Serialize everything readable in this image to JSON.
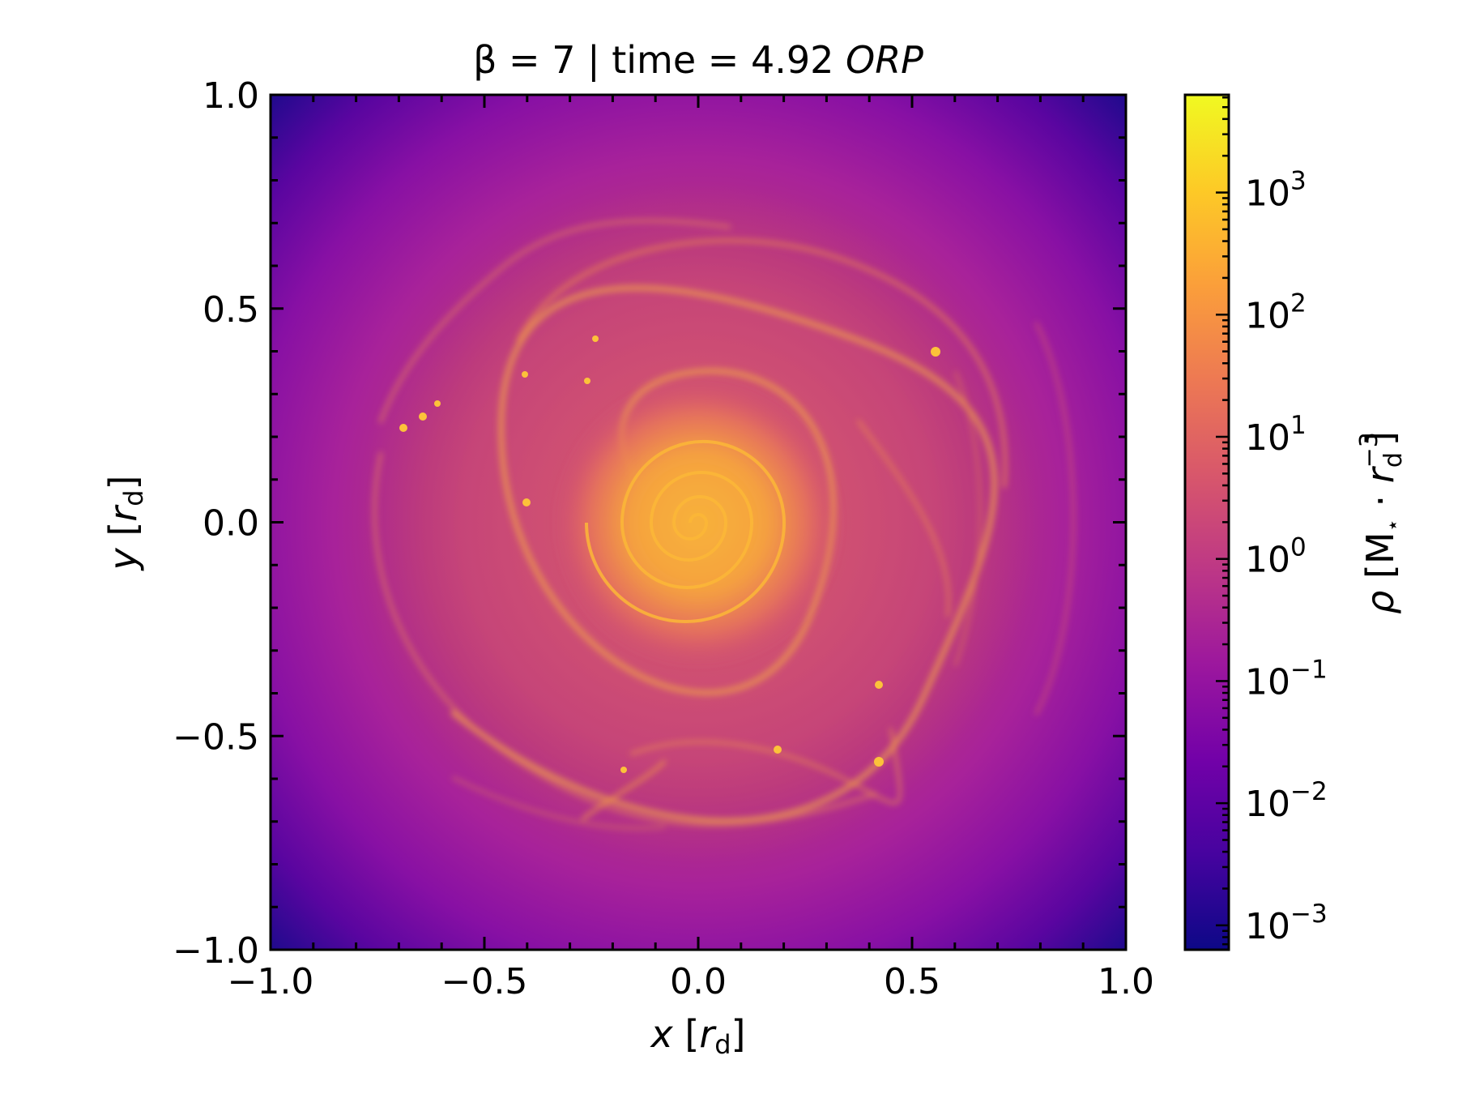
{
  "chart_data": {
    "type": "heatmap",
    "title_parts": {
      "beta": "β = 7",
      "sep": " | time = 4.92 ",
      "unit": "ORP"
    },
    "xlabel": {
      "var": "x",
      "open": " [",
      "sym": "r",
      "sub": "d",
      "close": "]"
    },
    "ylabel": {
      "var": "y",
      "open": " [",
      "sym": "r",
      "sub": "d",
      "close": "]"
    },
    "xlim": [
      -1.0,
      1.0
    ],
    "ylim": [
      -1.0,
      1.0
    ],
    "xticks": [
      -1.0,
      -0.5,
      0.0,
      0.5,
      1.0
    ],
    "yticks": [
      -1.0,
      -0.5,
      0.0,
      0.5,
      1.0
    ],
    "xtick_labels": [
      "−1.0",
      "−0.5",
      "0.0",
      "0.5",
      "1.0"
    ],
    "ytick_labels": [
      "−1.0",
      "−0.5",
      "0.0",
      "0.5",
      "1.0"
    ],
    "colorbar": {
      "label": {
        "rho": "ρ",
        "open": " [M",
        "star": "⋆",
        "dot": " · ",
        "sym": "r",
        "sub": "d",
        "sup": "−3",
        "close": "]"
      },
      "scale": "log",
      "range_exp": [
        -3.2,
        3.8
      ],
      "tick_exponents": [
        -3,
        -2,
        -1,
        0,
        1,
        2,
        3
      ],
      "tick_labels": [
        {
          "base": "10",
          "exp": "−3"
        },
        {
          "base": "10",
          "exp": "−2"
        },
        {
          "base": "10",
          "exp": "−1"
        },
        {
          "base": "10",
          "exp": "0"
        },
        {
          "base": "10",
          "exp": "1"
        },
        {
          "base": "10",
          "exp": "2"
        },
        {
          "base": "10",
          "exp": "3"
        }
      ],
      "colormap": "plasma"
    },
    "grid": false,
    "colors": {
      "plasma": [
        "#0d0887",
        "#46039f",
        "#7201a8",
        "#9c179e",
        "#bd3786",
        "#d8576b",
        "#ed7953",
        "#fb9f3a",
        "#fdca26",
        "#f0f921"
      ]
    }
  }
}
